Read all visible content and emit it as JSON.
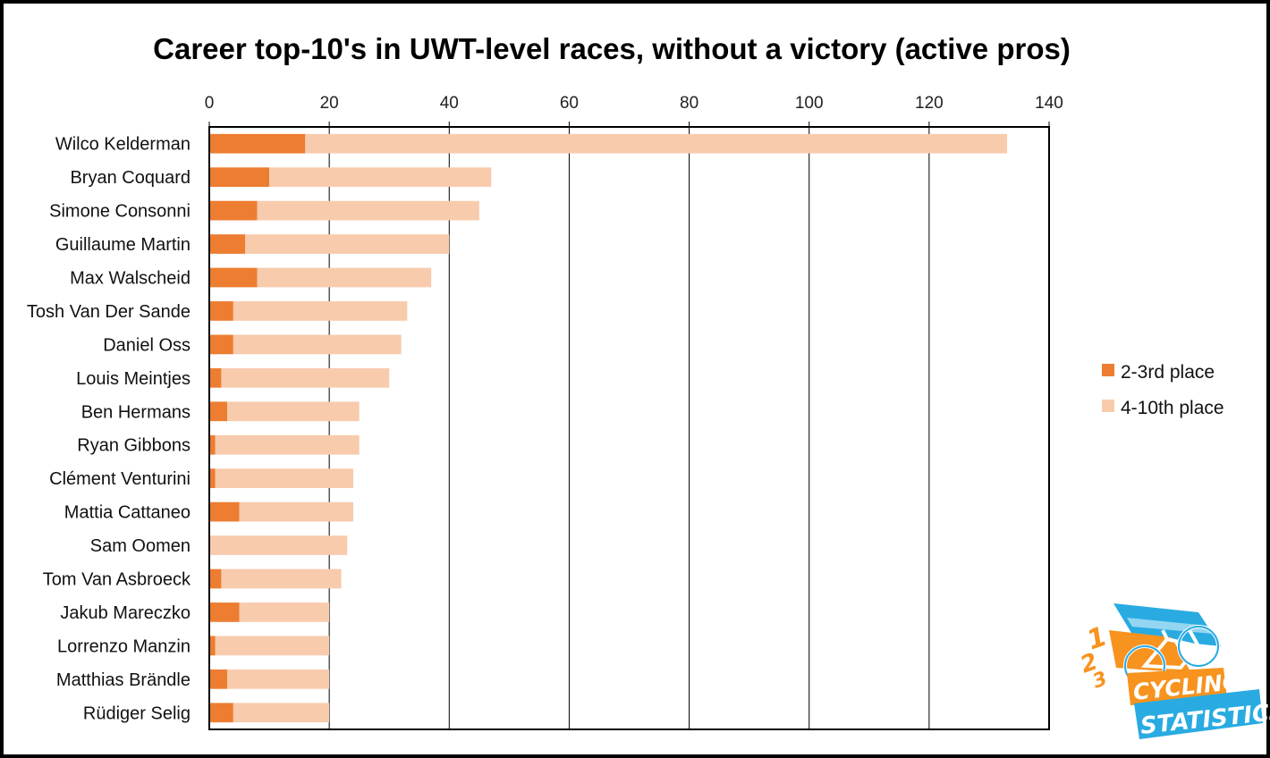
{
  "chart_data": {
    "type": "bar",
    "orientation": "horizontal",
    "stacked": true,
    "title": "Career top-10's in UWT-level races, without a victory (active pros)",
    "xlabel": "",
    "ylabel": "",
    "xlim": [
      0,
      140
    ],
    "x_ticks": [
      0,
      20,
      40,
      60,
      80,
      100,
      120,
      140
    ],
    "grid": true,
    "legend_position": "right",
    "categories": [
      "Wilco Kelderman",
      "Bryan Coquard",
      "Simone Consonni",
      "Guillaume Martin",
      "Max Walscheid",
      "Tosh Van Der Sande",
      "Daniel Oss",
      "Louis Meintjes",
      "Ben Hermans",
      "Ryan Gibbons",
      "Clément Venturini",
      "Mattia Cattaneo",
      "Sam Oomen",
      "Tom Van Asbroeck",
      "Jakub Mareczko",
      "Lorrenzo Manzin",
      "Matthias Brändle",
      "Rüdiger Selig"
    ],
    "series": [
      {
        "name": "2-3rd place",
        "color": "#ED7D31",
        "values": [
          16,
          10,
          8,
          6,
          8,
          4,
          4,
          2,
          3,
          1,
          1,
          5,
          0,
          2,
          5,
          1,
          3,
          4
        ]
      },
      {
        "name": "4-10th place",
        "color": "#F8CBAD",
        "values": [
          117,
          37,
          37,
          34,
          29,
          29,
          28,
          28,
          22,
          24,
          23,
          19,
          23,
          20,
          15,
          19,
          17,
          16
        ]
      }
    ]
  },
  "logo": {
    "line1": "CYCLING",
    "line2": "STATISTICS",
    "podium_labels": [
      "1",
      "2",
      "3"
    ],
    "colors": {
      "blue": "#29ABE2",
      "orange": "#F7931E"
    }
  }
}
